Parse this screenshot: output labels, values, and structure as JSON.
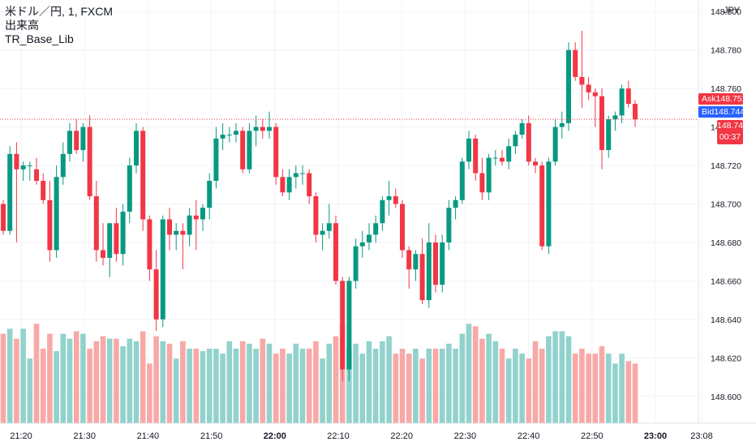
{
  "legend": {
    "symbol_line": "米ドル／円, 1, FXCM",
    "volume_label": "出来高",
    "indicator_label": "TR_Base_Lib"
  },
  "price_axis": {
    "currency": "JPY",
    "ticks": [
      "148.800",
      "148.780",
      "148.760",
      "148.740",
      "148.720",
      "148.700",
      "148.680",
      "148.660",
      "148.640",
      "148.620",
      "148.600"
    ],
    "ask_label": "Ask",
    "ask_value": "148.751",
    "bid_label": "Bid",
    "bid_value": "148.744",
    "last_value": "148.744",
    "countdown": "00:37"
  },
  "colors": {
    "up": "#089981",
    "down": "#f23645",
    "vol_up": "#92d2cc",
    "vol_down": "#f7a9a7",
    "grid": "#f0f3fa"
  },
  "chart_data": {
    "type": "candlestick",
    "x_ticks": [
      "21:20",
      "21:30",
      "21:40",
      "21:50",
      "22:00",
      "22:10",
      "22:20",
      "22:30",
      "22:40",
      "22:50",
      "23:00",
      "23:08"
    ],
    "ylim": [
      148.586,
      148.806
    ],
    "candles": [
      [
        148.7,
        148.702,
        148.684,
        148.686
      ],
      [
        148.686,
        148.73,
        148.684,
        148.726
      ],
      [
        148.726,
        148.732,
        148.68,
        148.718
      ],
      [
        148.718,
        148.722,
        148.712,
        148.72
      ],
      [
        148.72,
        148.722,
        148.712,
        148.72
      ],
      [
        148.718,
        148.724,
        148.71,
        148.712
      ],
      [
        148.712,
        148.716,
        148.7,
        148.702
      ],
      [
        148.702,
        148.712,
        148.67,
        148.676
      ],
      [
        148.676,
        148.72,
        148.672,
        148.714
      ],
      [
        148.714,
        148.732,
        148.71,
        148.726
      ],
      [
        148.726,
        148.742,
        148.722,
        148.738
      ],
      [
        148.738,
        148.744,
        148.726,
        148.728
      ],
      [
        148.728,
        148.742,
        148.722,
        148.74
      ],
      [
        148.74,
        148.746,
        148.702,
        148.704
      ],
      [
        148.704,
        148.712,
        148.67,
        148.676
      ],
      [
        148.676,
        148.69,
        148.668,
        148.672
      ],
      [
        148.672,
        148.69,
        148.662,
        148.69
      ],
      [
        148.69,
        148.698,
        148.67,
        148.674
      ],
      [
        148.674,
        148.7,
        148.668,
        148.696
      ],
      [
        148.696,
        148.724,
        148.69,
        148.72
      ],
      [
        148.72,
        148.742,
        148.716,
        148.738
      ],
      [
        148.738,
        148.74,
        148.686,
        148.692
      ],
      [
        148.692,
        148.694,
        148.66,
        148.666
      ],
      [
        148.666,
        148.676,
        148.634,
        148.64
      ],
      [
        148.64,
        148.694,
        148.636,
        148.692
      ],
      [
        148.692,
        148.698,
        148.676,
        148.684
      ],
      [
        148.684,
        148.69,
        148.676,
        148.686
      ],
      [
        148.686,
        148.69,
        148.666,
        148.684
      ],
      [
        148.684,
        148.698,
        148.678,
        148.694
      ],
      [
        148.694,
        148.702,
        148.676,
        148.692
      ],
      [
        148.692,
        148.7,
        148.686,
        148.698
      ],
      [
        148.698,
        148.716,
        148.692,
        148.712
      ],
      [
        148.712,
        148.74,
        148.708,
        148.734
      ],
      [
        148.734,
        148.742,
        148.728,
        148.736
      ],
      [
        148.736,
        148.74,
        148.732,
        148.736
      ],
      [
        148.736,
        148.742,
        148.732,
        148.738
      ],
      [
        148.738,
        148.74,
        148.716,
        148.718
      ],
      [
        148.718,
        148.742,
        148.716,
        148.738
      ],
      [
        148.738,
        148.746,
        148.73,
        148.74
      ],
      [
        148.74,
        148.744,
        148.734,
        148.738
      ],
      [
        148.738,
        148.748,
        148.734,
        148.74
      ],
      [
        148.74,
        148.742,
        148.71,
        148.714
      ],
      [
        148.714,
        148.718,
        148.704,
        148.706
      ],
      [
        148.706,
        148.718,
        148.702,
        148.714
      ],
      [
        148.714,
        148.72,
        148.708,
        148.716
      ],
      [
        148.716,
        148.72,
        148.71,
        148.716
      ],
      [
        148.716,
        148.718,
        148.7,
        148.704
      ],
      [
        148.704,
        148.706,
        148.68,
        148.684
      ],
      [
        148.684,
        148.69,
        148.676,
        148.686
      ],
      [
        148.686,
        148.7,
        148.682,
        148.69
      ],
      [
        148.69,
        148.694,
        148.658,
        148.66
      ],
      [
        148.66,
        148.662,
        148.608,
        148.614
      ],
      [
        148.614,
        148.662,
        148.608,
        148.66
      ],
      [
        148.66,
        148.682,
        148.656,
        148.678
      ],
      [
        148.678,
        148.686,
        148.672,
        148.68
      ],
      [
        148.68,
        148.69,
        148.676,
        148.684
      ],
      [
        148.684,
        148.694,
        148.68,
        148.69
      ],
      [
        148.69,
        148.704,
        148.686,
        148.702
      ],
      [
        148.702,
        148.712,
        148.694,
        148.704
      ],
      [
        148.704,
        148.708,
        148.698,
        148.7
      ],
      [
        148.7,
        148.702,
        148.672,
        148.676
      ],
      [
        148.676,
        148.678,
        148.656,
        148.666
      ],
      [
        148.666,
        148.676,
        148.66,
        148.674
      ],
      [
        148.674,
        148.682,
        148.648,
        148.65
      ],
      [
        148.65,
        148.69,
        148.646,
        148.68
      ],
      [
        148.68,
        148.684,
        148.654,
        148.658
      ],
      [
        148.658,
        148.684,
        148.654,
        148.68
      ],
      [
        148.68,
        148.702,
        148.676,
        148.698
      ],
      [
        148.698,
        148.704,
        148.692,
        148.702
      ],
      [
        148.702,
        148.724,
        148.7,
        148.722
      ],
      [
        148.722,
        148.738,
        148.718,
        148.734
      ],
      [
        148.734,
        148.736,
        148.712,
        148.716
      ],
      [
        148.716,
        148.724,
        148.702,
        148.706
      ],
      [
        148.706,
        148.726,
        148.702,
        148.724
      ],
      [
        148.724,
        148.728,
        148.72,
        148.724
      ],
      [
        148.724,
        148.728,
        148.72,
        148.722
      ],
      [
        148.722,
        148.734,
        148.718,
        148.73
      ],
      [
        148.73,
        148.738,
        148.726,
        148.736
      ],
      [
        148.736,
        148.744,
        148.734,
        148.742
      ],
      [
        148.742,
        148.746,
        148.72,
        148.722
      ],
      [
        148.722,
        148.724,
        148.716,
        148.72
      ],
      [
        148.72,
        148.722,
        148.676,
        148.678
      ],
      [
        148.678,
        148.724,
        148.674,
        148.722
      ],
      [
        148.722,
        148.744,
        148.72,
        148.74
      ],
      [
        148.74,
        148.748,
        148.734,
        148.742
      ],
      [
        148.742,
        148.784,
        148.738,
        148.78
      ],
      [
        148.78,
        148.784,
        148.764,
        148.766
      ],
      [
        148.766,
        148.79,
        148.75,
        148.762
      ],
      [
        148.762,
        148.766,
        148.754,
        148.758
      ],
      [
        148.758,
        148.76,
        148.74,
        148.756
      ],
      [
        148.756,
        148.76,
        148.718,
        148.728
      ],
      [
        148.728,
        148.746,
        148.724,
        148.744
      ],
      [
        148.744,
        148.748,
        148.738,
        148.746
      ],
      [
        148.746,
        148.762,
        148.742,
        148.76
      ],
      [
        148.76,
        148.764,
        148.75,
        148.752
      ],
      [
        148.752,
        148.754,
        148.74,
        148.744
      ]
    ],
    "volumes": [
      36,
      38,
      34,
      38,
      26,
      40,
      30,
      36,
      29,
      36,
      34,
      37,
      36,
      30,
      33,
      35,
      34,
      34,
      31,
      34,
      33,
      37,
      24,
      35,
      33,
      32,
      26,
      33,
      30,
      30,
      29,
      30,
      30,
      28,
      33,
      30,
      33,
      32,
      30,
      34,
      32,
      28,
      30,
      28,
      32,
      30,
      30,
      33,
      26,
      32,
      35,
      40,
      30,
      32,
      28,
      33,
      30,
      33,
      35,
      28,
      30,
      28,
      30,
      26,
      30,
      30,
      30,
      32,
      30,
      36,
      40,
      39,
      34,
      36,
      33,
      30,
      26,
      30,
      28,
      26,
      33,
      30,
      35,
      37,
      37,
      35,
      28,
      30,
      28,
      28,
      31,
      28,
      24,
      28,
      25,
      24
    ]
  }
}
